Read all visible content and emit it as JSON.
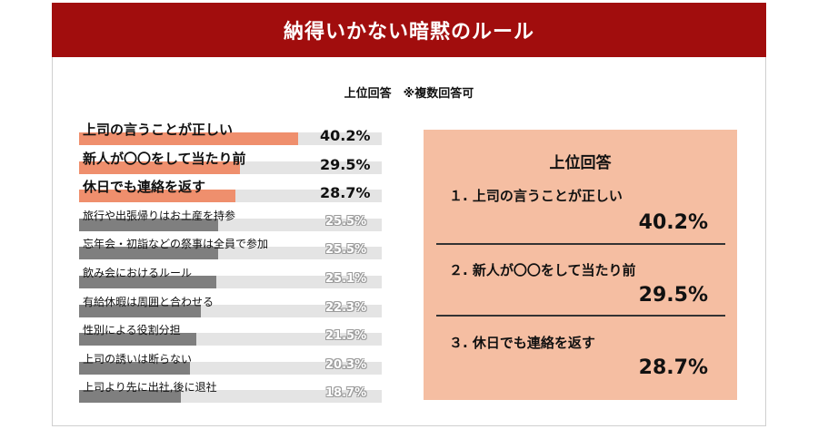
{
  "colors": {
    "banner": "#a10d0d",
    "highlight_bar": "#ef8f6d",
    "rest_bar": "#7f7f7f",
    "track": "#e4e4e4",
    "panel_bg": "#f5bea2"
  },
  "header": {
    "title": "納得いかない暗黙のルール"
  },
  "subtitle": "上位回答　※複数回答可",
  "chart_data": {
    "type": "bar",
    "orientation": "horizontal",
    "title": "納得いかない暗黙のルール",
    "subtitle": "上位回答　※複数回答可",
    "categories": [
      "上司の言うことが正しい",
      "新人が〇〇をして当たり前",
      "休日でも連絡を返す",
      "旅行や出張帰りはお土産を持参",
      "忘年会・初詣などの祭事は全員で参加",
      "飲み会におけるルール",
      "有給休暇は周囲と合わせる",
      "性別による役割分担",
      "上司の誘いは断らない",
      "上司より先に出社,後に退社"
    ],
    "values": [
      40.2,
      29.5,
      28.7,
      25.5,
      25.5,
      25.1,
      22.3,
      21.5,
      20.3,
      18.7
    ],
    "value_labels": [
      "40.2%",
      "29.5%",
      "28.7%",
      "25.5%",
      "25.5%",
      "25.1%",
      "22.3%",
      "21.5%",
      "20.3%",
      "18.7%"
    ],
    "unit": "%",
    "highlight_count": 3,
    "xlim": [
      0,
      60
    ],
    "grid": false,
    "legend": "none"
  },
  "panel": {
    "title": "上位回答",
    "ranks": [
      {
        "text": "１. 上司の言うことが正しい",
        "pct": "40.2%"
      },
      {
        "text": "２. 新人が〇〇をして当たり前",
        "pct": "29.5%"
      },
      {
        "text": "３. 休日でも連絡を返す",
        "pct": "28.7%"
      }
    ]
  }
}
